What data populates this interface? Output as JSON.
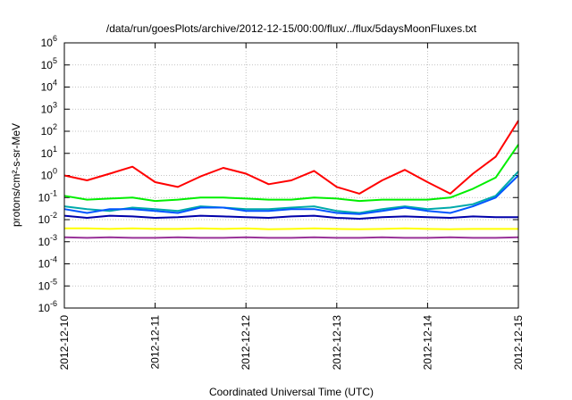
{
  "chart_data": {
    "type": "line",
    "title": "/data/run/goesPlots/archive/2012-12-15/00:00/flux/../flux/5daysMoonFluxes.txt",
    "xlabel": "Coordinated Universal Time (UTC)",
    "ylabel": "protons/cm²-s-sr-MeV",
    "yscale": "log",
    "xlim": [
      "2012-12-10",
      "2012-12-15"
    ],
    "ylim": [
      1e-06,
      1000000.0
    ],
    "x_ticks": [
      "2012-12-10",
      "2012-12-11",
      "2012-12-12",
      "2012-12-13",
      "2012-12-14",
      "2012-12-15"
    ],
    "y_ticks": [
      {
        "base": "10",
        "exp": "-6"
      },
      {
        "base": "10",
        "exp": "-5"
      },
      {
        "base": "10",
        "exp": "-4"
      },
      {
        "base": "10",
        "exp": "-3"
      },
      {
        "base": "10",
        "exp": "-2"
      },
      {
        "base": "10",
        "exp": "-1"
      },
      {
        "base": "10",
        "exp": "0"
      },
      {
        "base": "10",
        "exp": "1"
      },
      {
        "base": "10",
        "exp": "2"
      },
      {
        "base": "10",
        "exp": "3"
      },
      {
        "base": "10",
        "exp": "4"
      },
      {
        "base": "10",
        "exp": "5"
      },
      {
        "base": "10",
        "exp": "6"
      }
    ],
    "grid": true,
    "legend": "none",
    "x_days": [
      0,
      0.25,
      0.5,
      0.75,
      1,
      1.25,
      1.5,
      1.75,
      2,
      2.25,
      2.5,
      2.75,
      3,
      3.25,
      3.5,
      3.75,
      4,
      4.25,
      4.5,
      4.75,
      5
    ],
    "series": [
      {
        "color": "#ff0000",
        "values": [
          1.0,
          0.6,
          1.2,
          2.5,
          0.5,
          0.3,
          0.9,
          2.2,
          1.2,
          0.4,
          0.6,
          1.6,
          0.3,
          0.15,
          0.6,
          1.8,
          0.5,
          0.15,
          1.2,
          7.0,
          300
        ]
      },
      {
        "color": "#00ee00",
        "values": [
          0.12,
          0.08,
          0.09,
          0.1,
          0.07,
          0.08,
          0.1,
          0.1,
          0.09,
          0.08,
          0.08,
          0.1,
          0.09,
          0.07,
          0.08,
          0.08,
          0.08,
          0.1,
          0.25,
          0.8,
          25
        ]
      },
      {
        "color": "#00aaaa",
        "values": [
          0.04,
          0.03,
          0.025,
          0.035,
          0.03,
          0.025,
          0.04,
          0.035,
          0.03,
          0.03,
          0.035,
          0.04,
          0.025,
          0.02,
          0.03,
          0.04,
          0.03,
          0.035,
          0.05,
          0.12,
          1.5
        ]
      },
      {
        "color": "#0055ff",
        "values": [
          0.03,
          0.02,
          0.03,
          0.03,
          0.025,
          0.02,
          0.035,
          0.035,
          0.025,
          0.025,
          0.03,
          0.03,
          0.02,
          0.018,
          0.025,
          0.035,
          0.025,
          0.02,
          0.04,
          0.1,
          1.0
        ]
      },
      {
        "color": "#0000aa",
        "values": [
          0.015,
          0.012,
          0.015,
          0.014,
          0.012,
          0.013,
          0.015,
          0.014,
          0.013,
          0.012,
          0.014,
          0.015,
          0.012,
          0.011,
          0.013,
          0.014,
          0.013,
          0.012,
          0.014,
          0.013,
          0.013
        ]
      },
      {
        "color": "#ffff00",
        "values": [
          0.004,
          0.004,
          0.0038,
          0.004,
          0.0038,
          0.0038,
          0.004,
          0.0038,
          0.004,
          0.0037,
          0.0038,
          0.004,
          0.0038,
          0.0037,
          0.0038,
          0.004,
          0.0038,
          0.0037,
          0.0038,
          0.0038,
          0.0038
        ]
      },
      {
        "color": "#993399",
        "values": [
          0.0016,
          0.0015,
          0.0016,
          0.0015,
          0.0015,
          0.0016,
          0.0015,
          0.0015,
          0.0016,
          0.0015,
          0.0015,
          0.0016,
          0.0015,
          0.0015,
          0.0016,
          0.0015,
          0.0015,
          0.0016,
          0.0015,
          0.0015,
          0.0016
        ]
      }
    ]
  }
}
